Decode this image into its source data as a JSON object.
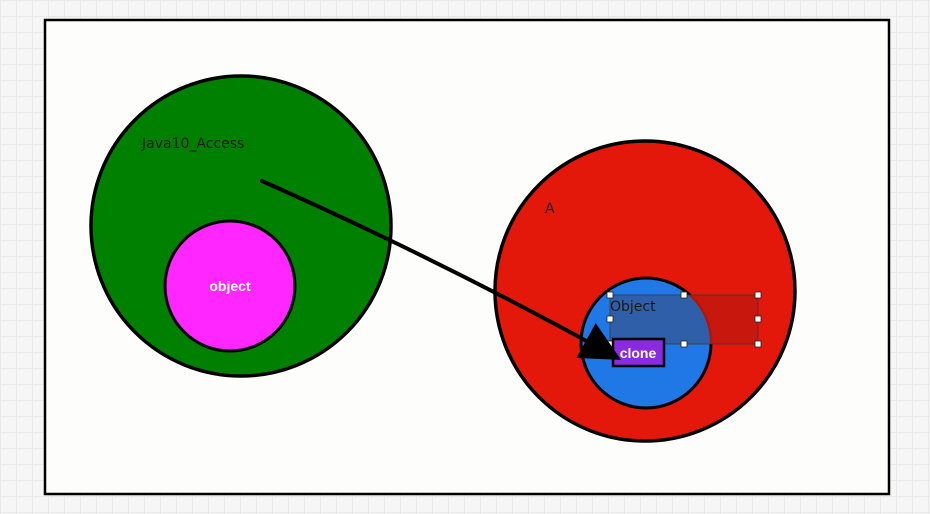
{
  "diagram": {
    "colors": {
      "canvas_bg": "#fdfdfb",
      "outline": "#000000",
      "java10_access_fill": "#008000",
      "object_package_fill": "#ff26ff",
      "a_fill": "#e3170a",
      "object_class_fill": "#1f78e6",
      "clone_fill": "#8a2be2",
      "selection_fill": "#2f5fa8",
      "selection_overlay_right": "#c4170c"
    },
    "left_circle": {
      "label": "Java10_Access",
      "inner_circle_label": "object"
    },
    "right_circle": {
      "label": "A",
      "inner_circle_label": "Object",
      "method_label": "clone"
    }
  }
}
